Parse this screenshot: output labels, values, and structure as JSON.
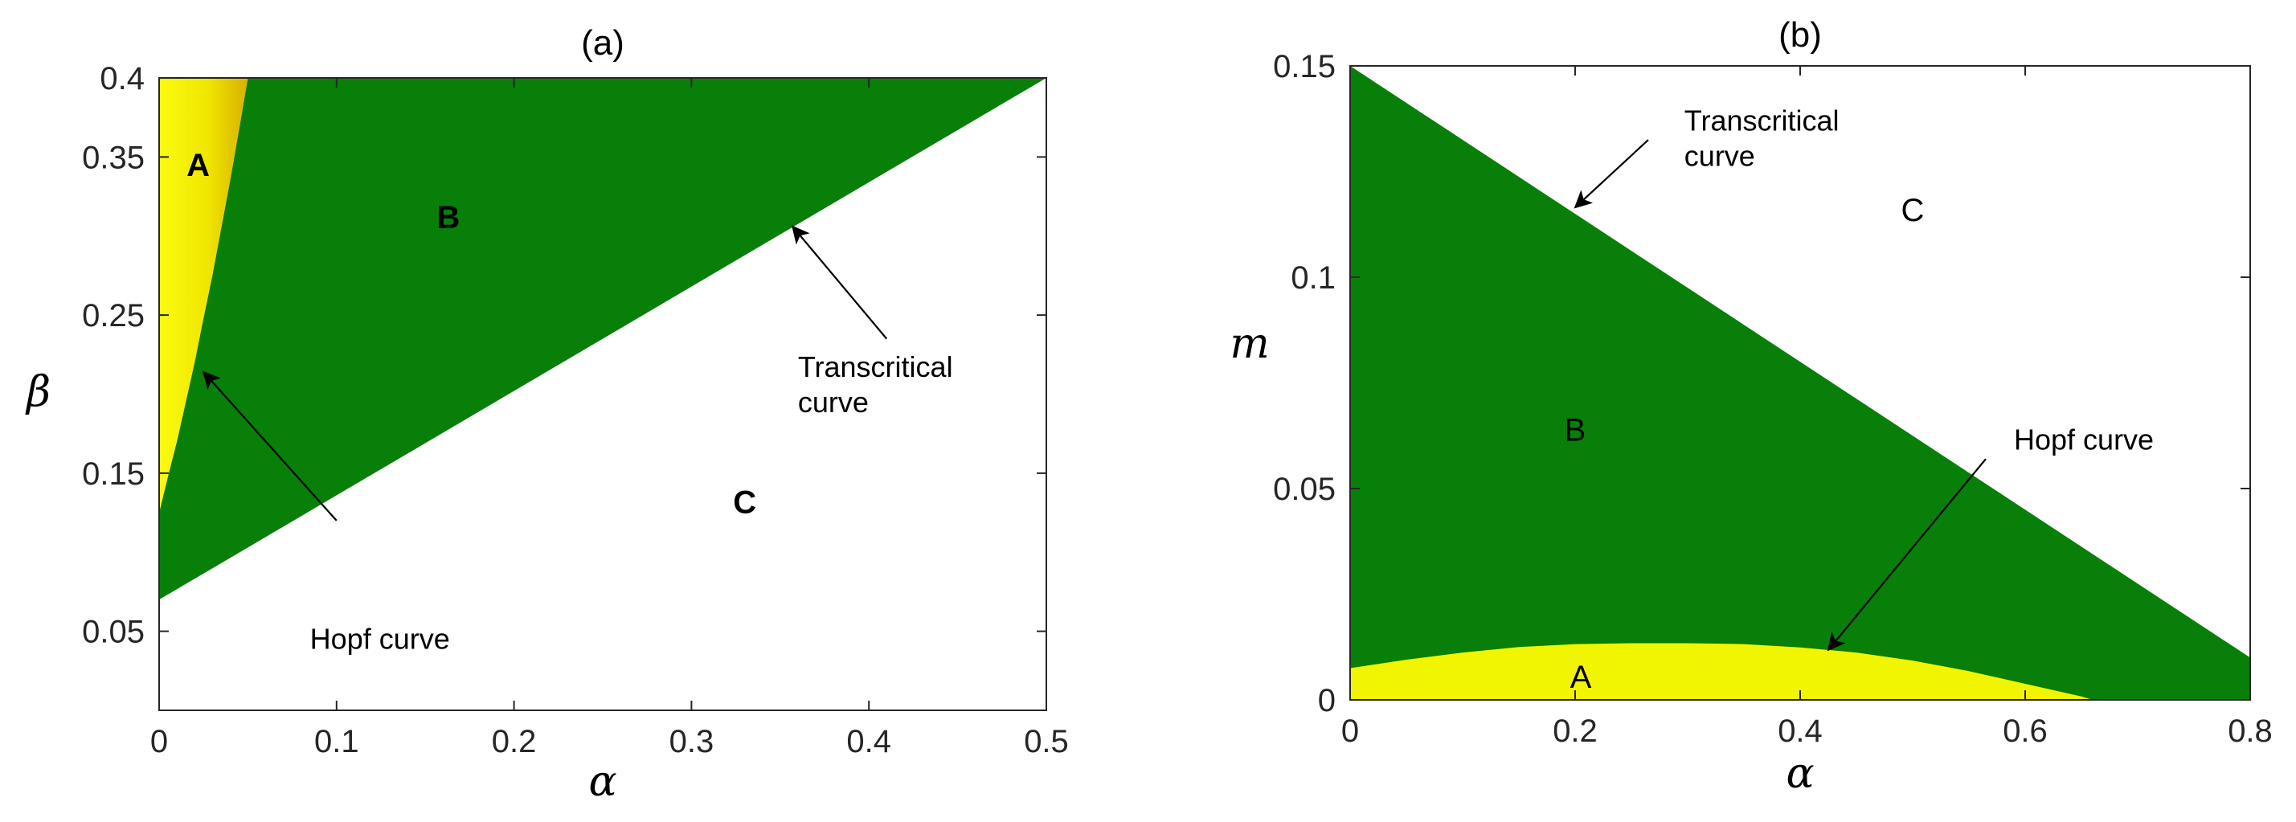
{
  "colors": {
    "region_A": "#f2f500",
    "region_A_edge": "#d9b000",
    "region_B": "#087f08",
    "region_C": "#ffffff",
    "axis": "#262626"
  },
  "chart_data": [
    {
      "type": "area",
      "title": "(a)",
      "xlabel": "α",
      "ylabel": "β",
      "xlim": [
        0,
        0.5
      ],
      "ylim": [
        0.0,
        0.4
      ],
      "xticks": [
        0,
        0.1,
        0.2,
        0.3,
        0.4,
        0.5
      ],
      "xtick_labels": [
        "0",
        "0.1",
        "0.2",
        "0.3",
        "0.4",
        "0.5"
      ],
      "yticks": [
        0.05,
        0.15,
        0.25,
        0.35,
        0.4
      ],
      "ytick_labels": [
        "0.05",
        "0.15",
        "0.25",
        "0.35",
        "0.4"
      ],
      "grid": false,
      "curves": {
        "transcritical": {
          "label": "Transcritical curve",
          "x": [
            0,
            0.5
          ],
          "y": [
            0.07,
            0.4
          ]
        },
        "hopf": {
          "label": "Hopf curve",
          "x": [
            0,
            0.005,
            0.01,
            0.015,
            0.02,
            0.025,
            0.03,
            0.035,
            0.04,
            0.045,
            0.05
          ],
          "y": [
            0.125,
            0.148,
            0.17,
            0.195,
            0.22,
            0.248,
            0.275,
            0.305,
            0.335,
            0.367,
            0.4
          ]
        }
      },
      "regions": [
        {
          "name": "A",
          "x": 0.022,
          "y": 0.345
        },
        {
          "name": "B",
          "x": 0.163,
          "y": 0.312
        },
        {
          "name": "C",
          "x": 0.33,
          "y": 0.132
        }
      ],
      "annotations": [
        {
          "lines": [
            "Transcritical",
            "curve"
          ],
          "text_x": 0.36,
          "text_y": 0.217,
          "arrow_to_x": 0.357,
          "arrow_to_y": 0.306,
          "arrow_from_x": 0.41,
          "arrow_from_y": 0.235
        },
        {
          "lines": [
            "Hopf curve"
          ],
          "text_x": 0.085,
          "text_y": 0.045,
          "arrow_to_x": 0.025,
          "arrow_to_y": 0.214,
          "arrow_from_x": 0.1,
          "arrow_from_y": 0.12
        }
      ]
    },
    {
      "type": "area",
      "title": "(b)",
      "xlabel": "α",
      "ylabel": "m",
      "xlim": [
        0,
        0.8
      ],
      "ylim": [
        0,
        0.15
      ],
      "xticks": [
        0,
        0.2,
        0.4,
        0.6,
        0.8
      ],
      "xtick_labels": [
        "0",
        "0.2",
        "0.4",
        "0.6",
        "0.8"
      ],
      "yticks": [
        0,
        0.05,
        0.1,
        0.15
      ],
      "ytick_labels": [
        "0",
        "0.05",
        "0.1",
        "0.15"
      ],
      "grid": false,
      "curves": {
        "transcritical": {
          "label": "Transcritical curve",
          "x": [
            0,
            0.8
          ],
          "y": [
            0.15,
            0.01
          ]
        },
        "hopf": {
          "label": "Hopf curve",
          "x": [
            0,
            0.05,
            0.1,
            0.15,
            0.2,
            0.25,
            0.3,
            0.35,
            0.4,
            0.45,
            0.5,
            0.55,
            0.6,
            0.65,
            0.66
          ],
          "y": [
            0.0075,
            0.0095,
            0.0112,
            0.0125,
            0.0132,
            0.0134,
            0.0134,
            0.0132,
            0.0124,
            0.0112,
            0.0093,
            0.0068,
            0.0038,
            0.0008,
            0.0
          ]
        }
      },
      "regions": [
        {
          "name": "A",
          "x": 0.205,
          "y": 0.0055
        },
        {
          "name": "B",
          "x": 0.2,
          "y": 0.064
        },
        {
          "name": "C",
          "x": 0.5,
          "y": 0.116
        }
      ],
      "annotations": [
        {
          "lines": [
            "Transcritical",
            "curve"
          ],
          "text_x": 0.297,
          "text_y": 0.137,
          "arrow_to_x": 0.2,
          "arrow_to_y": 0.1165,
          "arrow_from_x": 0.265,
          "arrow_from_y": 0.1325
        },
        {
          "lines": [
            "Hopf curve"
          ],
          "text_x": 0.59,
          "text_y": 0.0615,
          "arrow_to_x": 0.425,
          "arrow_to_y": 0.0118,
          "arrow_from_x": 0.565,
          "arrow_from_y": 0.057
        }
      ]
    }
  ]
}
